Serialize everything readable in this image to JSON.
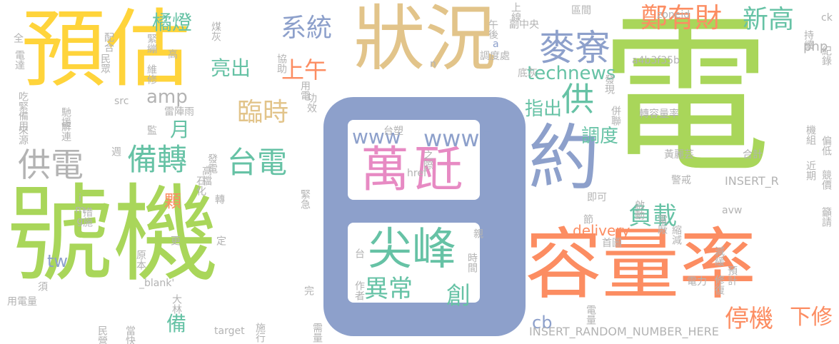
{
  "colors": {
    "yellow": "#FFD43B",
    "green": "#A9D65A",
    "tan": "#E2C48A",
    "blue": "#8DA0CB",
    "orange": "#FC8D62",
    "teal": "#66C2A5",
    "pink": "#E78AC3",
    "gray": "#B3B3B3"
  },
  "words": [
    "預估",
    "號機",
    "電",
    "狀況",
    "容量率",
    "約",
    "萬",
    "瓩",
    "尖峰",
    "麥寮",
    "鄭有財",
    "新高",
    "供電",
    "備轉",
    "台電",
    "系統",
    "橘燈",
    "亮出",
    "上午",
    "供",
    "臨時",
    "月",
    "www",
    "www5",
    "異常",
    "創",
    "technews",
    "amp",
    "指出",
    "調度",
    "負載",
    "停機",
    "下修",
    "顆",
    "備",
    "tw",
    "delivery",
    "php",
    "cb",
    "INSERT_RANDOM_NUMBER_HERE",
    "黃麗芸",
    "合計",
    "INSERT_R",
    "警戒",
    "avw",
    "a4b3f35b",
    "zoneid",
    "ck",
    "持續",
    "紀錄",
    "機組",
    "偏低",
    "近期",
    "競價",
    "籲請",
    "電力",
    "預計",
    "電量",
    "縮減",
    "減緩",
    "修復",
    "啟動",
    "電廠",
    "首圖",
    "即可",
    "節",
    "併聯",
    "轉容量率",
    "發現",
    "底灰",
    "調度處",
    "副中央",
    "區間",
    "上線",
    "午後",
    "a",
    "n",
    "煤灰",
    "協助",
    "功效",
    "用電",
    "src",
    "雷陣雨",
    "緊繃",
    "高",
    "維修",
    "配合",
    "民眾",
    "電達",
    "全",
    "吃緊",
    "備用",
    "來源",
    "馳援",
    "解連",
    "監",
    "週",
    "發電",
    "高檔",
    "石化",
    "緊急",
    "img",
    "措施",
    "更",
    "原本",
    "定",
    "_blank'",
    "大林",
    "轉",
    "須",
    "target",
    "施行",
    "需量",
    "完",
    "作者",
    "台",
    "時間",
    "親",
    "之際",
    "href",
    "台塑",
    "民營",
    "當快",
    "用電量"
  ]
}
